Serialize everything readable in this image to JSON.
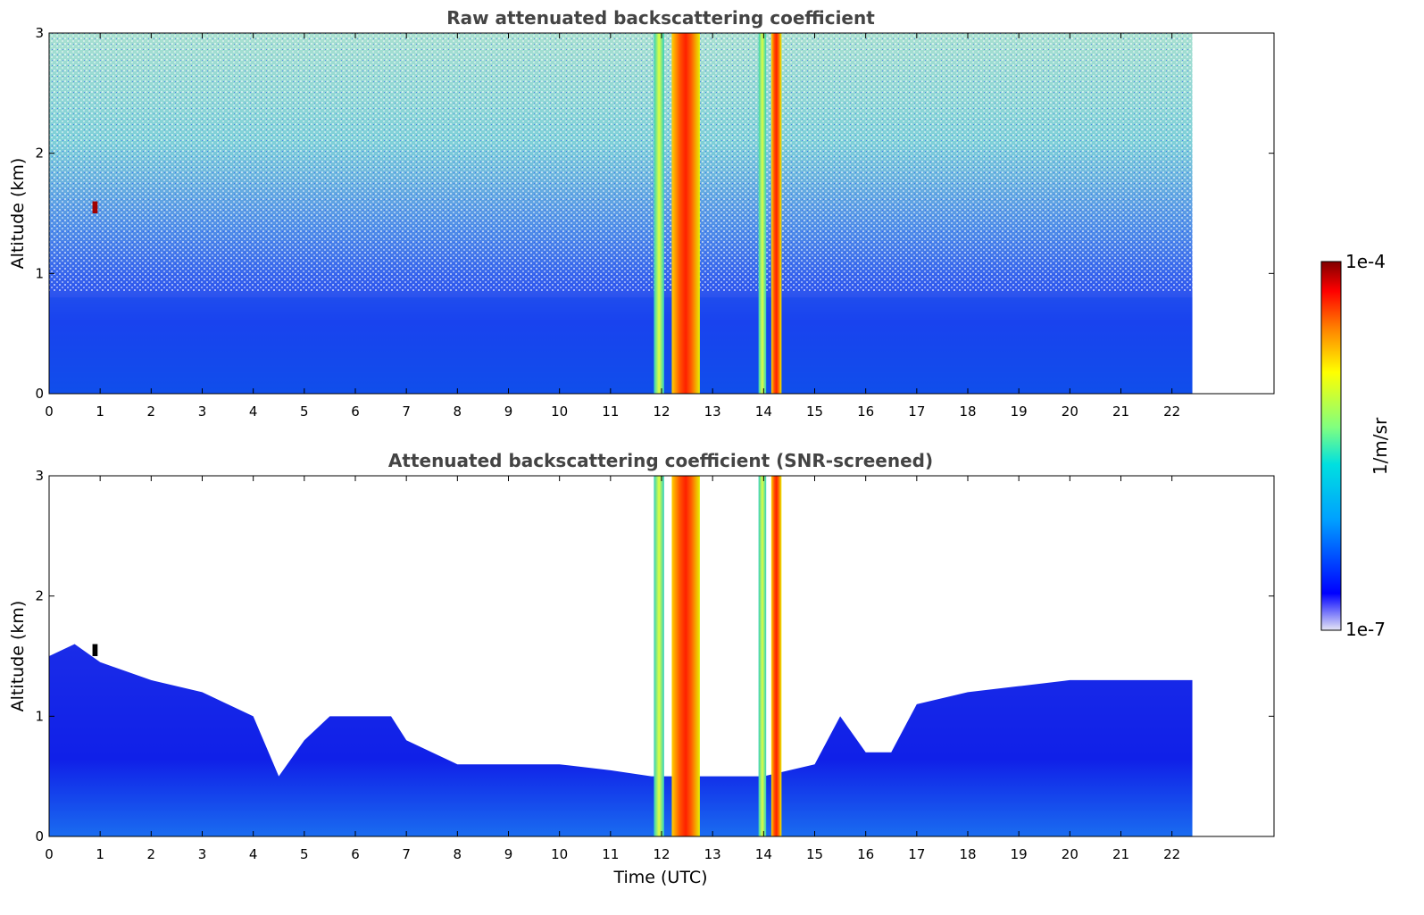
{
  "chart_data": [
    {
      "type": "heatmap",
      "title": "Raw attenuated backscattering coefficient",
      "xlabel": "",
      "ylabel": "Altitude (km)",
      "xlim": [
        0,
        24
      ],
      "ylim": [
        0,
        3
      ],
      "xticks": [
        "0",
        "1",
        "2",
        "3",
        "4",
        "5",
        "6",
        "7",
        "8",
        "9",
        "10",
        "11",
        "12",
        "13",
        "14",
        "15",
        "16",
        "17",
        "18",
        "19",
        "20",
        "21",
        "22"
      ],
      "yticks": [
        "0",
        "1",
        "2",
        "3"
      ],
      "data_extent_x": [
        0,
        22.4
      ],
      "bands": [
        {
          "name": "near-surface aerosol layer",
          "x": [
            0,
            22.4
          ],
          "top_km": 0.8,
          "level": "low"
        },
        {
          "name": "isolated feature",
          "x": [
            0.85,
            0.95
          ],
          "alt_km": [
            1.5,
            1.6
          ],
          "level": "very high"
        },
        {
          "name": "cloud column",
          "x": [
            11.85,
            12.05
          ],
          "alt_km": [
            0,
            3
          ],
          "level": "moderate"
        },
        {
          "name": "cloud column",
          "x": [
            12.2,
            12.75
          ],
          "alt_km": [
            0,
            3
          ],
          "level": "high"
        },
        {
          "name": "cloud column",
          "x": [
            13.9,
            14.05
          ],
          "alt_km": [
            0,
            3
          ],
          "level": "moderate"
        },
        {
          "name": "cloud column",
          "x": [
            14.15,
            14.35
          ],
          "alt_km": [
            0,
            3
          ],
          "level": "high"
        }
      ]
    },
    {
      "type": "heatmap",
      "title": "Attenuated backscattering coefficient (SNR-screened)",
      "xlabel": "Time (UTC)",
      "ylabel": "Altitude (km)",
      "xlim": [
        0,
        24
      ],
      "ylim": [
        0,
        3
      ],
      "xticks": [
        "0",
        "1",
        "2",
        "3",
        "4",
        "5",
        "6",
        "7",
        "8",
        "9",
        "10",
        "11",
        "12",
        "13",
        "14",
        "15",
        "16",
        "17",
        "18",
        "19",
        "20",
        "21",
        "22"
      ],
      "yticks": [
        "0",
        "1",
        "2",
        "3"
      ],
      "data_extent_x": [
        0,
        22.4
      ],
      "boundary_layer_top_km": [
        [
          0,
          1.5
        ],
        [
          0.5,
          1.6
        ],
        [
          1,
          1.45
        ],
        [
          2,
          1.3
        ],
        [
          3,
          1.2
        ],
        [
          4,
          1.0
        ],
        [
          4.5,
          0.5
        ],
        [
          5,
          0.8
        ],
        [
          5.5,
          1.0
        ],
        [
          6,
          1.0
        ],
        [
          6.7,
          1.0
        ],
        [
          7,
          0.8
        ],
        [
          7.5,
          0.7
        ],
        [
          8,
          0.6
        ],
        [
          9,
          0.6
        ],
        [
          10,
          0.6
        ],
        [
          11,
          0.55
        ],
        [
          11.8,
          0.5
        ],
        [
          12.8,
          0.5
        ],
        [
          13.5,
          0.5
        ],
        [
          14,
          0.5
        ],
        [
          15,
          0.6
        ],
        [
          15.5,
          1.0
        ],
        [
          16,
          0.7
        ],
        [
          16.5,
          0.7
        ],
        [
          17,
          1.1
        ],
        [
          18,
          1.2
        ],
        [
          19,
          1.25
        ],
        [
          20,
          1.3
        ],
        [
          21,
          1.3
        ],
        [
          22,
          1.3
        ],
        [
          22.4,
          1.3
        ]
      ]
    }
  ],
  "colorbar": {
    "label": "1/m/sr",
    "max_label": "1e-4",
    "min_label": "1e-7",
    "colormap": "jet",
    "colors": [
      "#e6e6f5",
      "#0000ff",
      "#00a0ff",
      "#00e0e0",
      "#80ff80",
      "#ffff00",
      "#ff8000",
      "#ff0000",
      "#800000"
    ]
  }
}
